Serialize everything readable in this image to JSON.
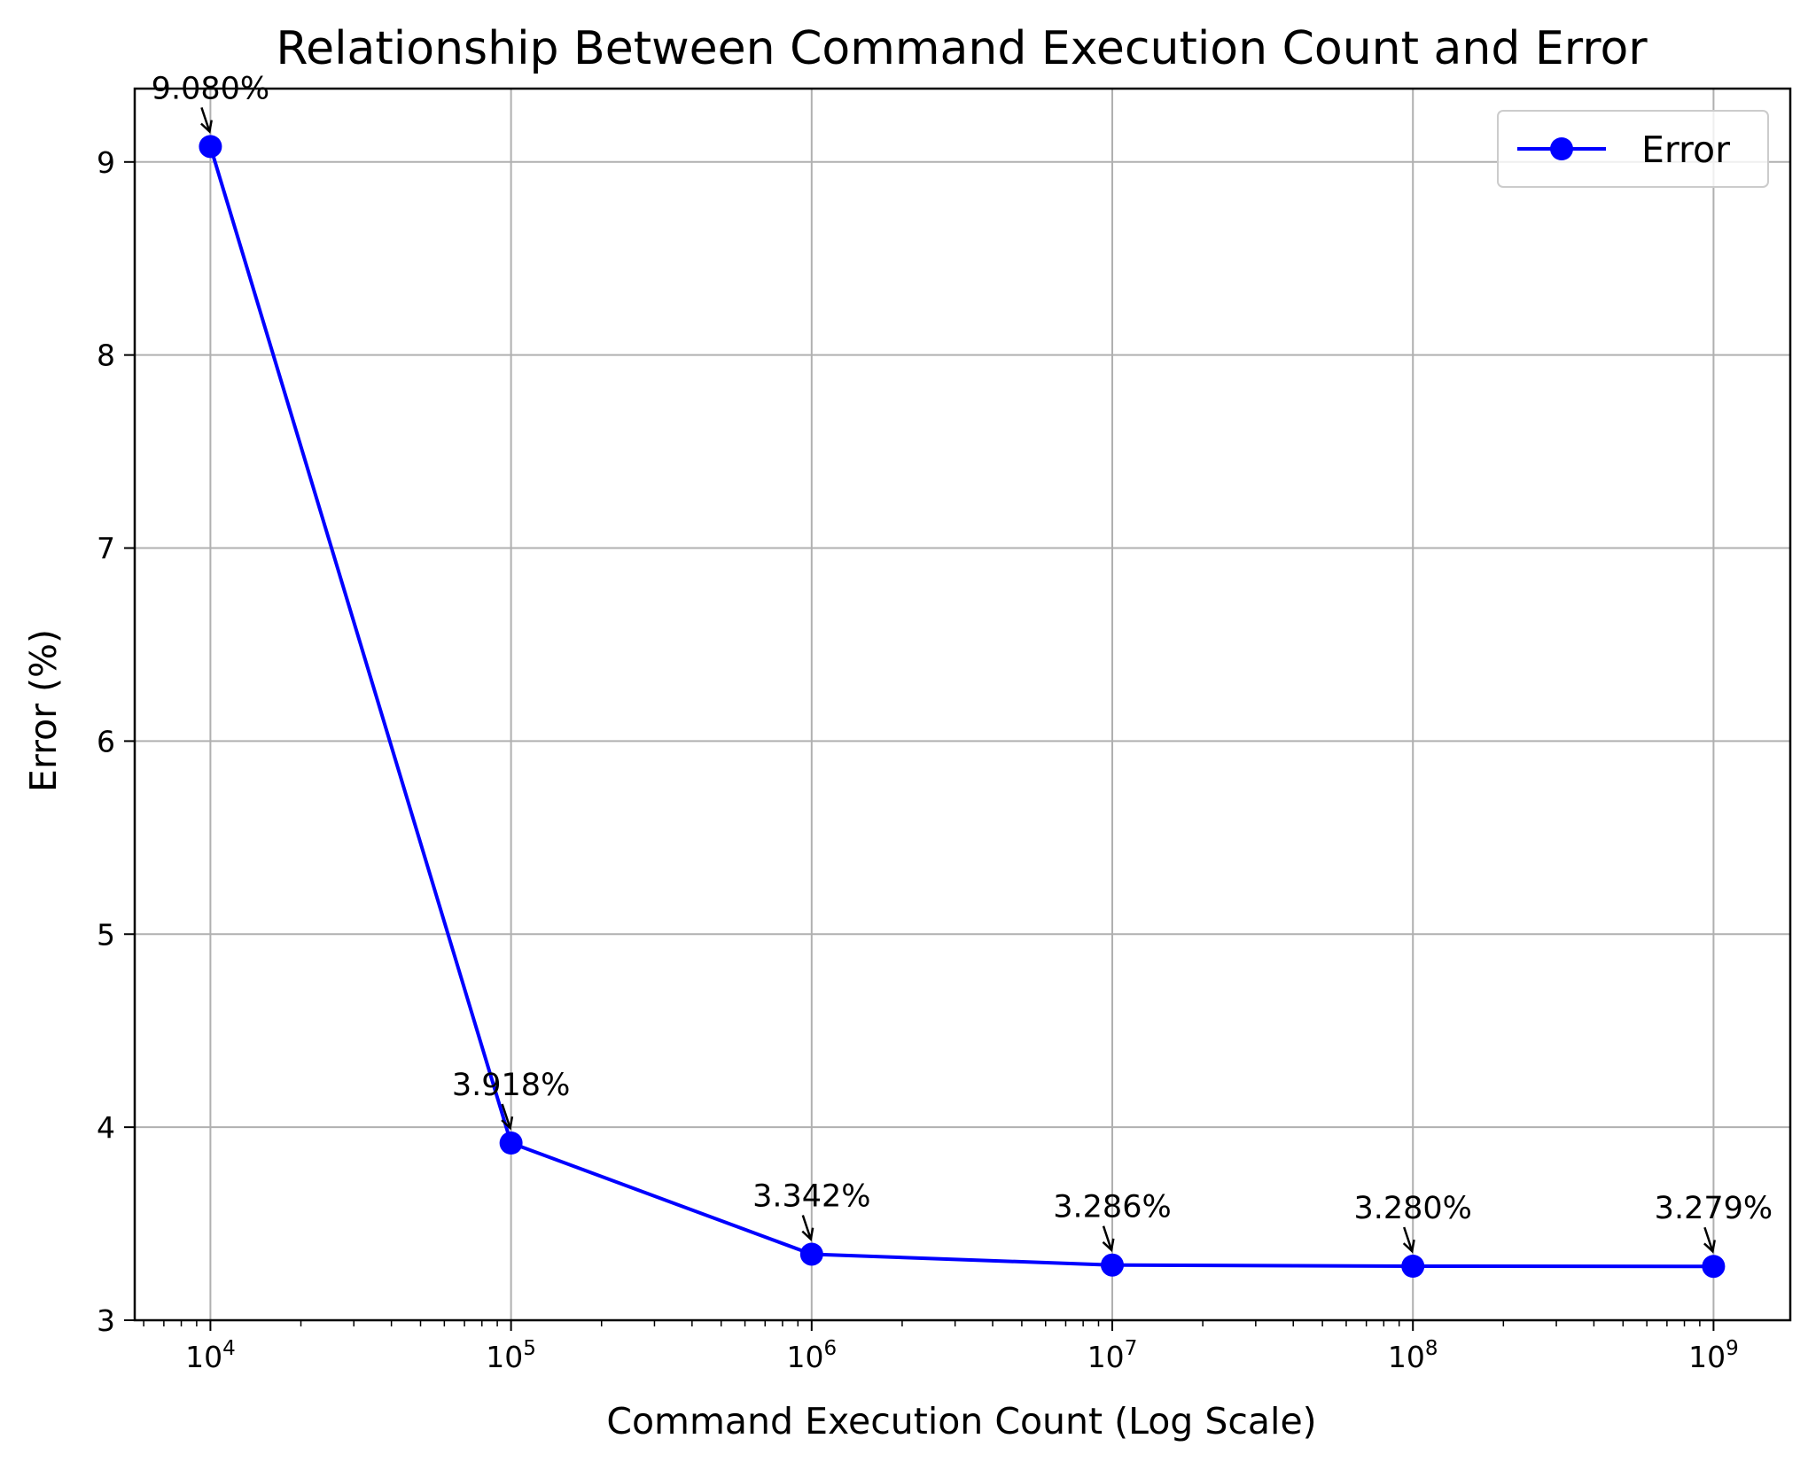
{
  "chart_data": {
    "type": "line",
    "title": "Relationship Between Command Execution Count and Error",
    "xlabel": "Command Execution Count (Log Scale)",
    "ylabel": "Error (%)",
    "x_scale": "log",
    "xlim": [
      5600,
      1800000000
    ],
    "ylim": [
      3.0,
      9.38
    ],
    "x_ticks": [
      {
        "base": "10",
        "exp": "4",
        "value": 10000
      },
      {
        "base": "10",
        "exp": "5",
        "value": 100000
      },
      {
        "base": "10",
        "exp": "6",
        "value": 1000000
      },
      {
        "base": "10",
        "exp": "7",
        "value": 10000000
      },
      {
        "base": "10",
        "exp": "8",
        "value": 100000000
      },
      {
        "base": "10",
        "exp": "9",
        "value": 1000000000
      }
    ],
    "y_ticks": [
      "3",
      "4",
      "5",
      "6",
      "7",
      "8",
      "9"
    ],
    "grid": true,
    "legend": {
      "position": "top-right"
    },
    "series": [
      {
        "name": "Error",
        "color": "#0000ff",
        "marker": "circle",
        "x": [
          10000,
          100000,
          1000000,
          10000000,
          100000000,
          1000000000
        ],
        "y": [
          9.08,
          3.918,
          3.342,
          3.286,
          3.28,
          3.279
        ],
        "labels": [
          "9.080%",
          "3.918%",
          "3.342%",
          "3.286%",
          "3.280%",
          "3.279%"
        ]
      }
    ]
  }
}
